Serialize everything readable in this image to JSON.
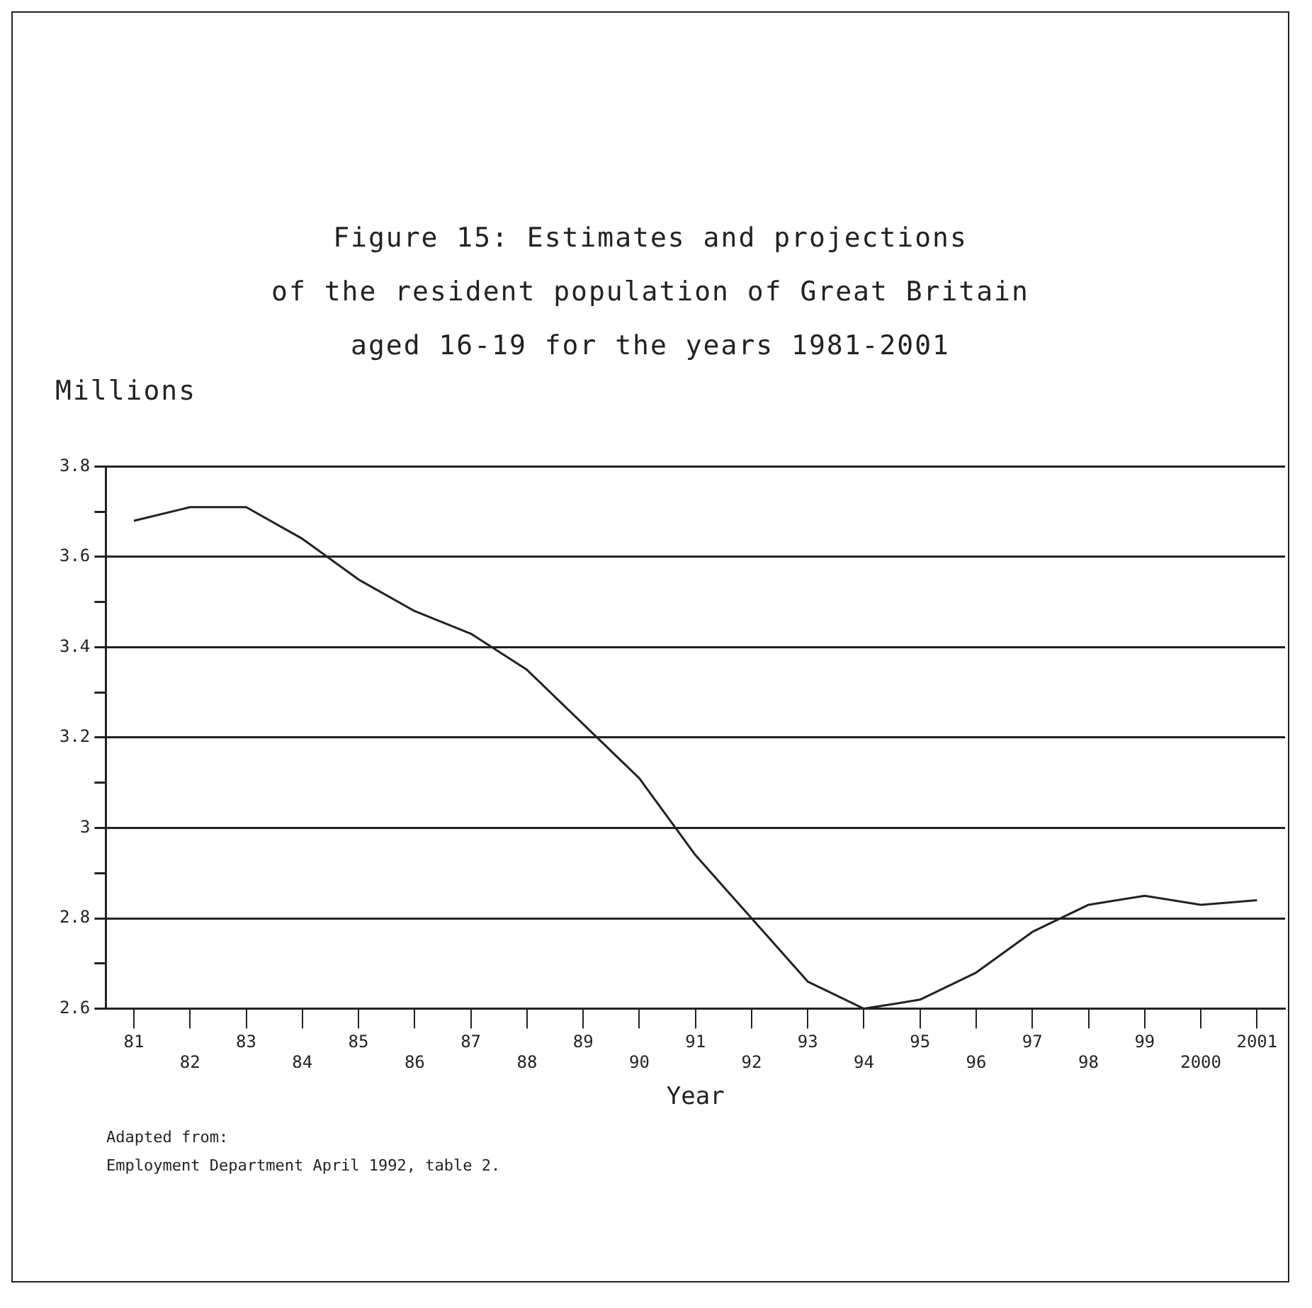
{
  "chart_data": {
    "type": "line",
    "title": "Figure 15: Estimates and projections\nof the resident population of Great Britain\naged 16-19 for the years 1981-2001",
    "ylabel": "Millions",
    "xlabel": "Year",
    "categories": [
      "81",
      "82",
      "83",
      "84",
      "85",
      "86",
      "87",
      "88",
      "89",
      "90",
      "91",
      "92",
      "93",
      "94",
      "95",
      "96",
      "97",
      "98",
      "99",
      "2000",
      "2001"
    ],
    "series": [
      {
        "color": "#222222",
        "values": [
          3.68,
          3.71,
          3.71,
          3.64,
          3.55,
          3.48,
          3.43,
          3.35,
          3.23,
          3.11,
          2.94,
          2.8,
          2.66,
          2.6,
          2.62,
          2.68,
          2.77,
          2.83,
          2.85,
          2.83,
          2.84
        ]
      }
    ],
    "ylim": [
      2.6,
      3.8
    ],
    "yticks": [
      2.6,
      {
        "value": 2.7,
        "label": null
      },
      2.8,
      {
        "value": 2.9,
        "label": null
      },
      3,
      {
        "value": 3.1,
        "label": null
      },
      3.2,
      {
        "value": 3.3,
        "label": null
      },
      3.4,
      {
        "value": 3.5,
        "label": null
      },
      3.6,
      {
        "value": 3.7,
        "label": null
      },
      3.8
    ],
    "grid": "y",
    "legend": false,
    "marker": "none",
    "line_style": "solid",
    "annotations": [
      "Adapted from:",
      "Employment Department April 1992, table 2."
    ]
  }
}
